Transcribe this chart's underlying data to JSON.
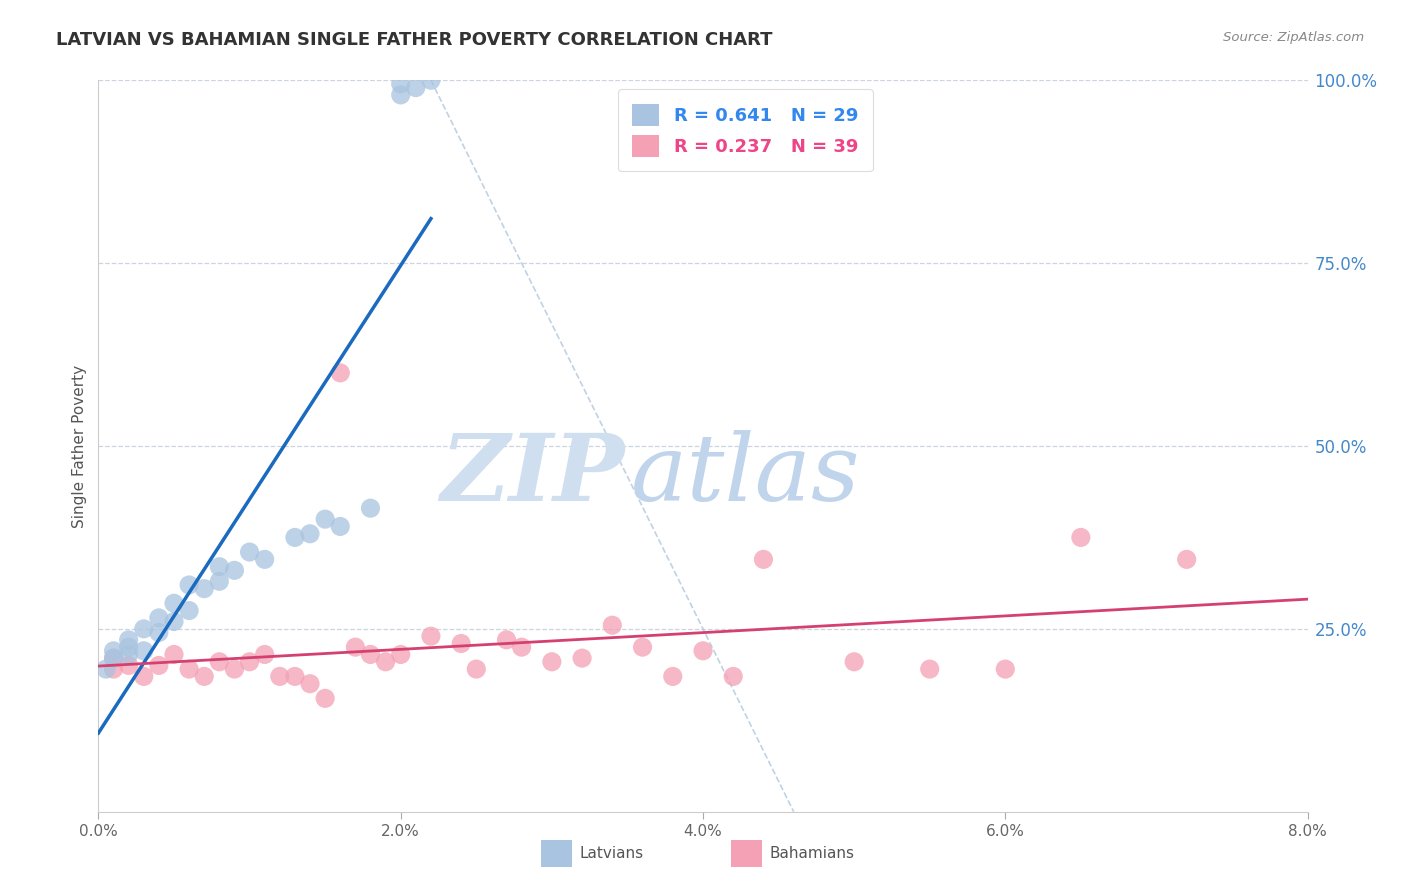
{
  "title": "LATVIAN VS BAHAMIAN SINGLE FATHER POVERTY CORRELATION CHART",
  "source": "Source: ZipAtlas.com",
  "ylabel": "Single Father Poverty",
  "latvian_R": 0.641,
  "latvian_N": 29,
  "bahamian_R": 0.237,
  "bahamian_N": 39,
  "latvian_color": "#a8c4e0",
  "bahamian_color": "#f4a0b5",
  "latvian_line_color": "#1a6abf",
  "bahamian_line_color": "#d44070",
  "xlim": [
    0.0,
    0.08
  ],
  "ylim": [
    0.0,
    1.0
  ],
  "xticks": [
    0.0,
    0.02,
    0.04,
    0.06,
    0.08
  ],
  "xticklabels": [
    "0.0%",
    "2.0%",
    "4.0%",
    "6.0%",
    "8.0%"
  ],
  "yticks_right": [
    0.25,
    0.5,
    0.75,
    1.0
  ],
  "yticklabels_right": [
    "25.0%",
    "50.0%",
    "75.0%",
    "100.0%"
  ],
  "grid_color": "#c8d0dc",
  "latvians_x": [
    0.0005,
    0.001,
    0.001,
    0.002,
    0.002,
    0.002,
    0.003,
    0.003,
    0.004,
    0.004,
    0.005,
    0.005,
    0.006,
    0.006,
    0.007,
    0.008,
    0.008,
    0.009,
    0.01,
    0.011,
    0.013,
    0.014,
    0.015,
    0.016,
    0.018,
    0.02,
    0.02,
    0.021,
    0.022
  ],
  "latvians_y": [
    0.195,
    0.21,
    0.22,
    0.215,
    0.225,
    0.235,
    0.22,
    0.25,
    0.245,
    0.265,
    0.26,
    0.285,
    0.275,
    0.31,
    0.305,
    0.315,
    0.335,
    0.33,
    0.355,
    0.345,
    0.375,
    0.38,
    0.4,
    0.39,
    0.415,
    0.995,
    0.98,
    0.99,
    1.0
  ],
  "bahamians_x": [
    0.001,
    0.001,
    0.002,
    0.003,
    0.004,
    0.005,
    0.006,
    0.007,
    0.008,
    0.009,
    0.01,
    0.011,
    0.012,
    0.013,
    0.014,
    0.015,
    0.016,
    0.017,
    0.018,
    0.019,
    0.02,
    0.022,
    0.024,
    0.025,
    0.027,
    0.028,
    0.03,
    0.032,
    0.034,
    0.036,
    0.038,
    0.04,
    0.042,
    0.044,
    0.05,
    0.055,
    0.06,
    0.065,
    0.072
  ],
  "bahamians_y": [
    0.195,
    0.21,
    0.2,
    0.185,
    0.2,
    0.215,
    0.195,
    0.185,
    0.205,
    0.195,
    0.205,
    0.215,
    0.185,
    0.185,
    0.175,
    0.155,
    0.6,
    0.225,
    0.215,
    0.205,
    0.215,
    0.24,
    0.23,
    0.195,
    0.235,
    0.225,
    0.205,
    0.21,
    0.255,
    0.225,
    0.185,
    0.22,
    0.185,
    0.345,
    0.205,
    0.195,
    0.195,
    0.375,
    0.345
  ],
  "ref_line_color": "#aac4dc",
  "watermark_zip_color": "#d0dff0",
  "watermark_atlas_color": "#c0d4ec"
}
